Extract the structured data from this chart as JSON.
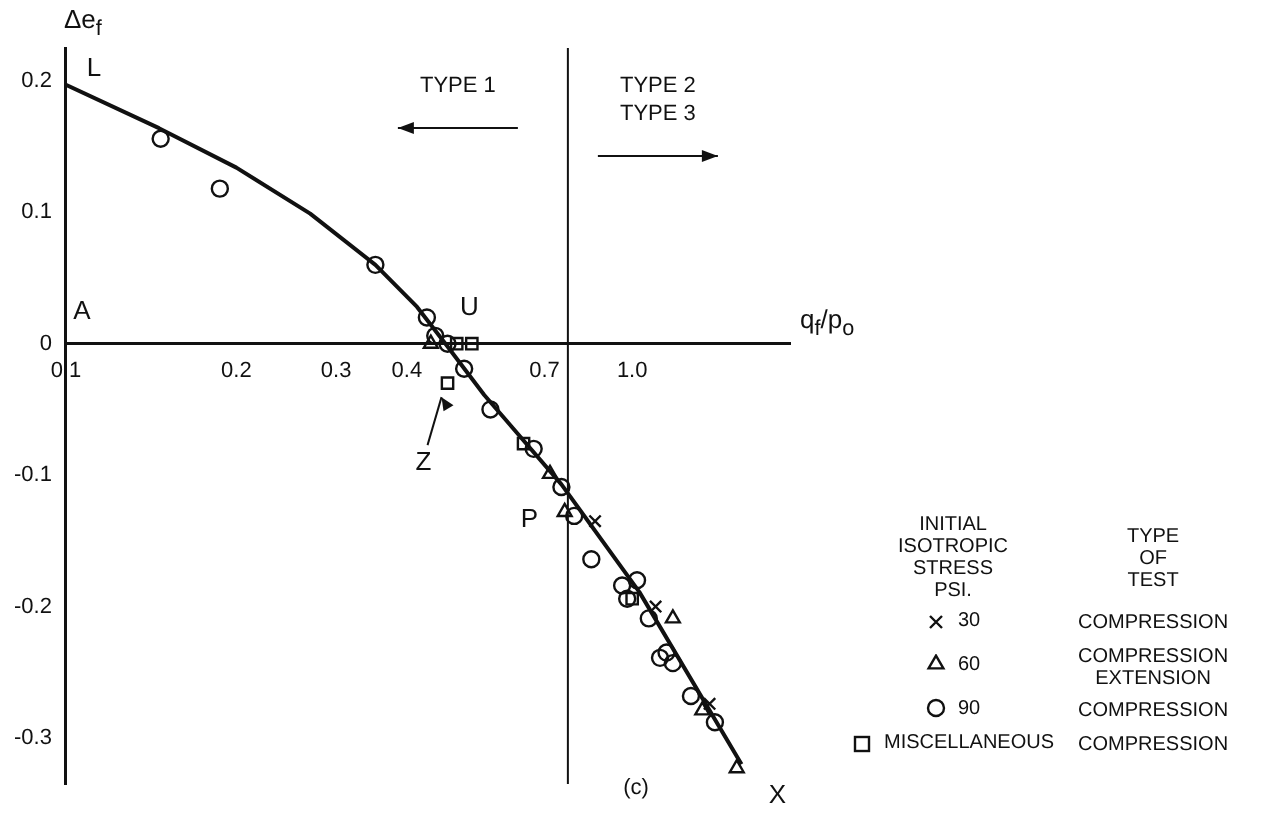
{
  "chart_data": {
    "type": "scatter",
    "xlabel": "q$_{f}$/p$_{o}$",
    "ylabel": "Δe$_{f}$",
    "log": "x",
    "grid": false,
    "legend": "right",
    "legend_title": "INITIAL ISOTROPIC STRESS PSI.",
    "xlim": [
      0.1,
      1.9
    ],
    "xticks": [
      0.1,
      0.2,
      0.3,
      0.4,
      0.7,
      {
        "value": 1.0,
        "label": "1.0"
      }
    ],
    "ylim": [
      -0.335,
      0.225
    ],
    "yticks": [
      0.2,
      0.1,
      0,
      -0.1,
      -0.2,
      -0.3
    ],
    "series": [
      {
        "name": "30",
        "color": "#111111",
        "marker": "cross",
        "x": [
          0.86,
          1.1,
          1.37
        ],
        "values": [
          -0.135,
          -0.2,
          -0.274
        ]
      },
      {
        "name": "60",
        "color": "#111111",
        "marker": "triangle",
        "x": [
          0.441,
          0.716,
          0.76,
          1.18,
          1.33,
          1.53
        ],
        "values": [
          0,
          -0.099,
          -0.128,
          -0.209,
          -0.279,
          -0.323
        ]
      },
      {
        "name": "90",
        "color": "#111111",
        "marker": "circle",
        "x": [
          0.147,
          0.187,
          0.352,
          0.434,
          0.449,
          0.472,
          0.505,
          0.562,
          0.67,
          0.75,
          0.79,
          0.847,
          0.96,
          1.02,
          0.98,
          1.07,
          1.12,
          1.15,
          1.18,
          1.27,
          1.4
        ],
        "values": [
          0.156,
          0.118,
          0.06,
          0.02,
          0.006,
          0,
          -0.019,
          -0.05,
          -0.08,
          -0.109,
          -0.131,
          -0.164,
          -0.184,
          -0.18,
          -0.194,
          -0.209,
          -0.239,
          -0.235,
          -0.243,
          -0.268,
          -0.288
        ]
      },
      {
        "name": "MISCELLANEOUS",
        "color": "#111111",
        "marker": "square",
        "x": [
          0.472,
          0.49,
          0.521,
          0.643,
          1.0
        ],
        "values": [
          -0.03,
          0,
          0,
          -0.076,
          -0.194
        ]
      },
      {
        "type": "line",
        "color": "#111111",
        "marker": "none",
        "line_style": "solid",
        "x": [
          0.1,
          0.146,
          0.2,
          0.27,
          0.352,
          0.417,
          0.468,
          0.548,
          0.75,
          1.03,
          1.56
        ],
        "values": [
          0.197,
          0.164,
          0.134,
          0.099,
          0.06,
          0.028,
          0,
          -0.039,
          -0.107,
          -0.189,
          -0.32
        ]
      }
    ],
    "ref_lines": [
      {
        "axis": "x",
        "value": 0.77,
        "color": "#111111"
      }
    ],
    "annotations": [
      "TYPE 1",
      "TYPE 2\nTYPE 3",
      "TYPE OF TEST",
      "COMPRESSION",
      "COMPRESSION\nEXTENSION",
      "COMPRESSION",
      "COMPRESSION",
      "(c)",
      "A",
      {
        "text": "L",
        "x": 0.1,
        "y": 0.197
      },
      {
        "text": "U",
        "x": 0.468,
        "y": 0
      },
      {
        "text": "P",
        "x": 0.75,
        "y": -0.107
      },
      {
        "text": "Z",
        "x": 0.472,
        "y": -0.03
      },
      {
        "text": "X",
        "x": 1.56,
        "y": -0.32
      }
    ]
  }
}
